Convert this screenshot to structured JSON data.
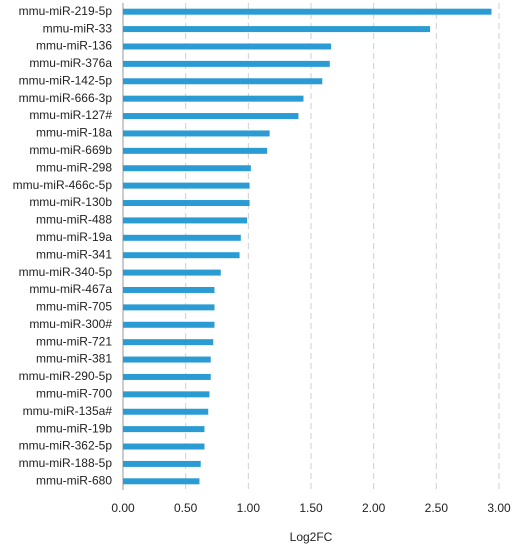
{
  "chart_data": {
    "type": "hbar",
    "x_label": "Log2FC",
    "categories": [
      "mmu-miR-219-5p",
      "mmu-miR-33",
      "mmu-miR-136",
      "mmu-miR-376a",
      "mmu-miR-142-5p",
      "mmu-miR-666-3p",
      "mmu-miR-127#",
      "mmu-miR-18a",
      "mmu-miR-669b",
      "mmu-miR-298",
      "mmu-miR-466c-5p",
      "mmu-miR-130b",
      "mmu-miR-488",
      "mmu-miR-19a",
      "mmu-miR-341",
      "mmu-miR-340-5p",
      "mmu-miR-467a",
      "mmu-miR-705",
      "mmu-miR-300#",
      "mmu-miR-721",
      "mmu-miR-381",
      "mmu-miR-290-5p",
      "mmu-miR-700",
      "mmu-miR-135a#",
      "mmu-miR-19b",
      "mmu-miR-362-5p",
      "mmu-miR-188-5p",
      "mmu-miR-680"
    ],
    "values": [
      2.94,
      2.45,
      1.66,
      1.65,
      1.59,
      1.44,
      1.4,
      1.17,
      1.15,
      1.02,
      1.01,
      1.01,
      0.99,
      0.94,
      0.93,
      0.78,
      0.73,
      0.73,
      0.73,
      0.72,
      0.7,
      0.7,
      0.69,
      0.68,
      0.65,
      0.65,
      0.62,
      0.61
    ],
    "color": "#2b9cd3",
    "xlim": [
      0,
      3
    ],
    "xticks": [
      {
        "value": 0,
        "label": "0.00"
      },
      {
        "value": 0.5,
        "label": "0.50"
      },
      {
        "value": 1,
        "label": "1.00"
      },
      {
        "value": 1.5,
        "label": "1.50"
      },
      {
        "value": 2,
        "label": "2.00"
      },
      {
        "value": 2.5,
        "label": "2.50"
      },
      {
        "value": 3,
        "label": "3.00"
      }
    ],
    "grid": true
  }
}
